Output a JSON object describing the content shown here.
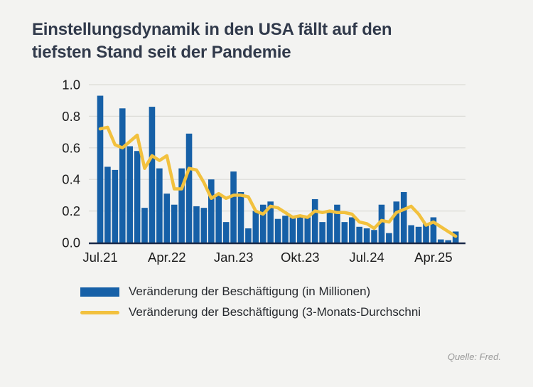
{
  "page": {
    "background": "#F3F3F1"
  },
  "heading": {
    "line1": "Einstellungsdynamik in den USA fällt auf den",
    "line2": "tiefsten Stand seit der Pandemie",
    "color": "#313A4B"
  },
  "legend": {
    "items": [
      {
        "label": "Veränderung der Beschäftigung (in Millionen)",
        "swatch": "bar-swatch",
        "color": "#1660A7"
      },
      {
        "label": "Veränderung der Beschäftigung (3-Monats-Durchschni",
        "swatch": "line-swatch",
        "color": "#F2C13E"
      }
    ]
  },
  "source": {
    "label": "Quelle: Fred."
  },
  "chart_data": {
    "type": "bar",
    "title": "",
    "xlabel": "",
    "ylabel": "",
    "ylim": [
      0,
      1.0
    ],
    "yticks": [
      "1.0",
      "0.8",
      "0.6",
      "0.4",
      "0.2",
      "0.0"
    ],
    "ytick_values": [
      1.0,
      0.8,
      0.6,
      0.4,
      0.2,
      0.0
    ],
    "xticks": [
      "Jul.21",
      "Apr.22",
      "Jan.23",
      "Okt.23",
      "Jul.24",
      "Apr.25"
    ],
    "grid": true,
    "legend_position": "bottom-left",
    "colors": {
      "bar": "#1660A7",
      "line": "#F2C13E",
      "grid": "#DBDBD7",
      "axis": "#1B2A49",
      "tick_text": "#1C1C1C"
    },
    "categories": [
      "Jul.21",
      "Aug.21",
      "Sep.21",
      "Okt.21",
      "Nov.21",
      "Dez.21",
      "Jan.22",
      "Feb.22",
      "Mär.22",
      "Apr.22",
      "Mai.22",
      "Jun.22",
      "Jul.22",
      "Aug.22",
      "Sep.22",
      "Okt.22",
      "Nov.22",
      "Dez.22",
      "Jan.23",
      "Feb.23",
      "Mär.23",
      "Apr.23",
      "Mai.23",
      "Jun.23",
      "Jul.23",
      "Aug.23",
      "Sep.23",
      "Okt.23",
      "Nov.23",
      "Dez.23",
      "Jan.24",
      "Feb.24",
      "Mär.24",
      "Apr.24",
      "Mai.24",
      "Jun.24",
      "Jul.24",
      "Aug.24",
      "Sep.24",
      "Okt.24",
      "Nov.24",
      "Dez.24",
      "Jan.25",
      "Feb.25",
      "Mär.25",
      "Apr.25",
      "Mai.25",
      "Jun.25",
      "Jul.25"
    ],
    "series": [
      {
        "name": "Veränderung der Beschäftigung (in Millionen)",
        "type": "bar",
        "values": [
          0.93,
          0.48,
          0.46,
          0.85,
          0.61,
          0.58,
          0.22,
          0.86,
          0.47,
          0.31,
          0.24,
          0.47,
          0.69,
          0.23,
          0.22,
          0.4,
          0.31,
          0.13,
          0.45,
          0.32,
          0.09,
          0.2,
          0.24,
          0.26,
          0.15,
          0.17,
          0.16,
          0.165,
          0.16,
          0.275,
          0.13,
          0.19,
          0.24,
          0.13,
          0.16,
          0.1,
          0.09,
          0.08,
          0.24,
          0.06,
          0.26,
          0.32,
          0.11,
          0.1,
          0.12,
          0.16,
          0.02,
          0.015,
          0.07
        ]
      },
      {
        "name": "Veränderung der Beschäftigung (3-Monats-Durchschni",
        "type": "line",
        "values": [
          0.72,
          0.73,
          0.62,
          0.6,
          0.64,
          0.68,
          0.47,
          0.55,
          0.52,
          0.55,
          0.34,
          0.34,
          0.47,
          0.46,
          0.38,
          0.28,
          0.31,
          0.28,
          0.3,
          0.3,
          0.29,
          0.2,
          0.18,
          0.23,
          0.22,
          0.19,
          0.16,
          0.17,
          0.16,
          0.2,
          0.19,
          0.2,
          0.19,
          0.19,
          0.18,
          0.13,
          0.12,
          0.09,
          0.14,
          0.13,
          0.19,
          0.21,
          0.23,
          0.18,
          0.11,
          0.13,
          0.1,
          0.07,
          0.04
        ]
      }
    ]
  }
}
